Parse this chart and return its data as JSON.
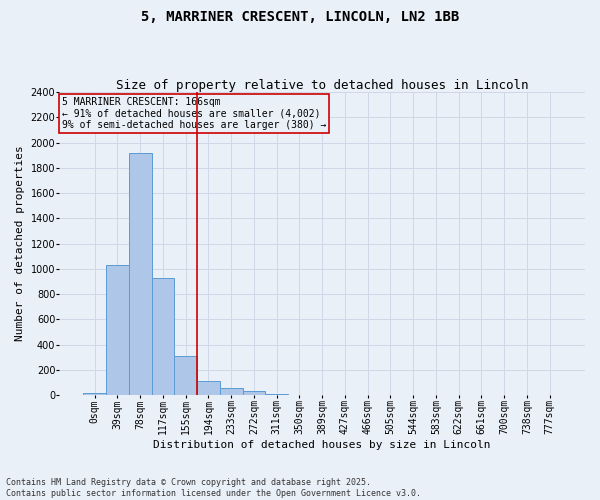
{
  "title_line1": "5, MARRINER CRESCENT, LINCOLN, LN2 1BB",
  "title_line2": "Size of property relative to detached houses in Lincoln",
  "xlabel": "Distribution of detached houses by size in Lincoln",
  "ylabel": "Number of detached properties",
  "footer_line1": "Contains HM Land Registry data © Crown copyright and database right 2025.",
  "footer_line2": "Contains public sector information licensed under the Open Government Licence v3.0.",
  "annotation_line1": "5 MARRINER CRESCENT: 166sqm",
  "annotation_line2": "← 91% of detached houses are smaller (4,002)",
  "annotation_line3": "9% of semi-detached houses are larger (380) →",
  "bar_labels": [
    "0sqm",
    "39sqm",
    "78sqm",
    "117sqm",
    "155sqm",
    "194sqm",
    "233sqm",
    "272sqm",
    "311sqm",
    "350sqm",
    "389sqm",
    "427sqm",
    "466sqm",
    "505sqm",
    "544sqm",
    "583sqm",
    "622sqm",
    "661sqm",
    "700sqm",
    "738sqm",
    "777sqm"
  ],
  "bar_values": [
    20,
    1030,
    1920,
    930,
    310,
    110,
    55,
    35,
    10,
    0,
    0,
    0,
    0,
    0,
    0,
    0,
    0,
    0,
    0,
    0,
    0
  ],
  "bar_color": "#aec6e8",
  "bar_edge_color": "#5b9bd5",
  "grid_color": "#d0d8e8",
  "background_color": "#eaf0f8",
  "red_line_color": "#cc0000",
  "ylim": [
    0,
    2400
  ],
  "yticks": [
    0,
    200,
    400,
    600,
    800,
    1000,
    1200,
    1400,
    1600,
    1800,
    2000,
    2200,
    2400
  ],
  "red_line_bin_index": 4,
  "title1_fontsize": 10,
  "title2_fontsize": 9,
  "ylabel_fontsize": 8,
  "xlabel_fontsize": 8,
  "tick_fontsize": 7,
  "annotation_fontsize": 7,
  "footer_fontsize": 6
}
